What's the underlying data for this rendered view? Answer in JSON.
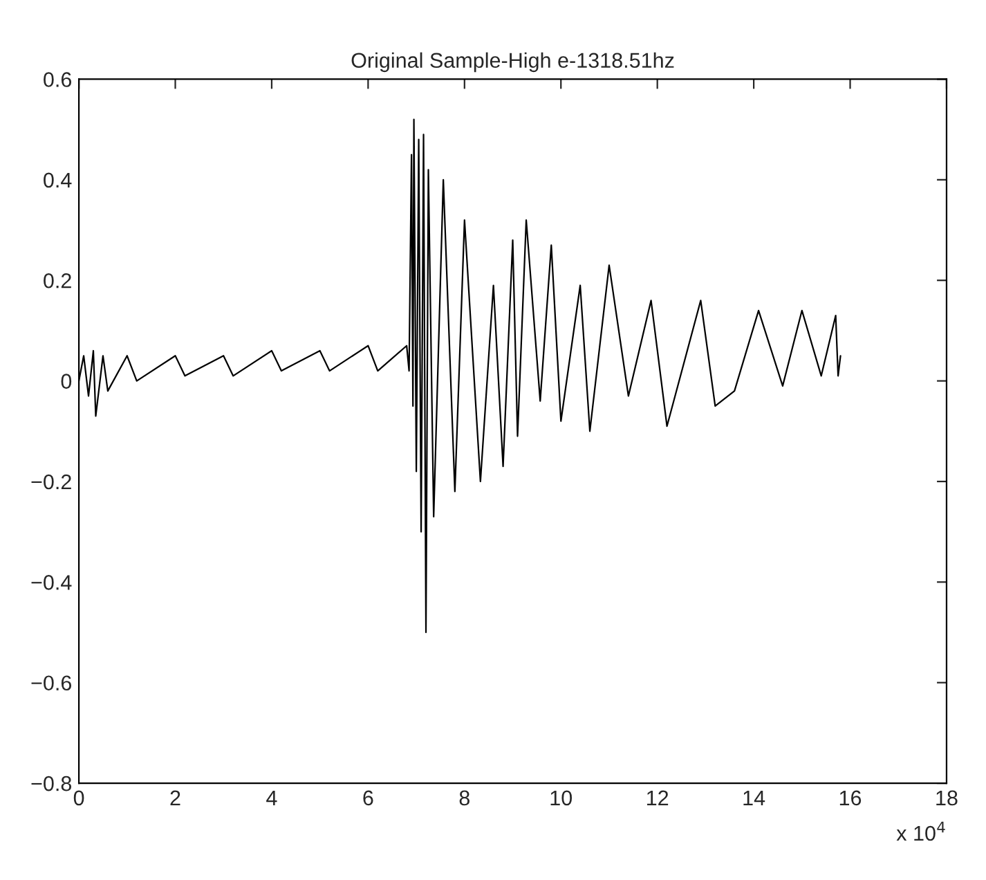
{
  "chart_data": {
    "type": "line",
    "title": "Original Sample-High e-1318.51hz",
    "x": [
      0.0,
      0.1,
      0.2,
      0.3,
      0.35,
      0.5,
      0.6,
      1.0,
      1.2,
      2.0,
      2.2,
      3.0,
      3.2,
      4.0,
      4.2,
      5.0,
      5.2,
      6.0,
      6.2,
      6.8,
      6.85,
      6.9,
      6.93,
      6.95,
      7.0,
      7.05,
      7.1,
      7.15,
      7.2,
      7.25,
      7.36,
      7.56,
      7.8,
      8.0,
      8.33,
      8.6,
      8.8,
      9.0,
      9.1,
      9.28,
      9.57,
      9.8,
      10.0,
      10.4,
      10.6,
      11.0,
      11.4,
      11.87,
      12.2,
      12.9,
      13.2,
      13.6,
      14.1,
      14.6,
      15.0,
      15.4,
      15.7,
      15.75,
      15.8
    ],
    "series": [
      {
        "color": "#000000",
        "values": [
          0.0,
          0.05,
          -0.03,
          0.06,
          -0.07,
          0.05,
          -0.02,
          0.05,
          0.0,
          0.05,
          0.01,
          0.05,
          0.01,
          0.06,
          0.02,
          0.06,
          0.02,
          0.07,
          0.02,
          0.07,
          0.02,
          0.45,
          -0.05,
          0.52,
          -0.18,
          0.48,
          -0.3,
          0.49,
          -0.5,
          0.42,
          -0.27,
          0.4,
          -0.22,
          0.32,
          -0.2,
          0.19,
          -0.17,
          0.28,
          -0.11,
          0.32,
          -0.04,
          0.27,
          -0.08,
          0.19,
          -0.1,
          0.23,
          -0.03,
          0.16,
          -0.09,
          0.16,
          -0.05,
          -0.02,
          0.14,
          -0.01,
          0.14,
          0.01,
          0.13,
          0.01,
          0.05
        ]
      }
    ],
    "xlim": [
      0,
      18
    ],
    "xticks": [
      0,
      2,
      4,
      6,
      8,
      10,
      12,
      14,
      16,
      18
    ],
    "ylim": [
      -0.8,
      0.6
    ],
    "yticks": [
      {
        "value": -0.8,
        "label": "−0.8"
      },
      {
        "value": -0.6,
        "label": "−0.6"
      },
      {
        "value": -0.4,
        "label": "−0.4"
      },
      {
        "value": -0.2,
        "label": "−0.2"
      },
      0,
      0.2,
      0.4,
      0.6
    ],
    "annotations": [
      "x 10$^{4}$"
    ],
    "grid": false,
    "legend": false,
    "marker": "none",
    "line_style": "solid"
  }
}
